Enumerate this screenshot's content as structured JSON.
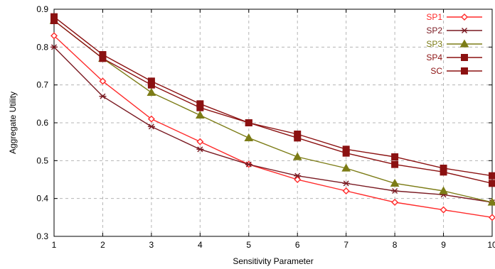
{
  "chart_data": {
    "type": "line",
    "xlabel": "Sensitivity Parameter",
    "ylabel": "Aggregate Utility",
    "xlim": [
      1,
      10
    ],
    "ylim": [
      0.3,
      0.9
    ],
    "x_ticks": [
      "1",
      "2",
      "3",
      "4",
      "5",
      "6",
      "7",
      "8",
      "9",
      "10"
    ],
    "y_ticks": [
      "0.3",
      "0.4",
      "0.5",
      "0.6",
      "0.7",
      "0.8",
      "0.9"
    ],
    "grid": true,
    "legend_position": "top-right",
    "x": [
      1,
      2,
      3,
      4,
      5,
      6,
      7,
      8,
      9,
      10
    ],
    "series": [
      {
        "name": "SP1",
        "color": "#ff2a2a",
        "marker": "open-diamond",
        "values": [
          0.83,
          0.71,
          0.61,
          0.55,
          0.49,
          0.45,
          0.42,
          0.39,
          0.37,
          0.35
        ]
      },
      {
        "name": "SP2",
        "color": "#7a1a22",
        "marker": "asterisk",
        "values": [
          0.8,
          0.67,
          0.59,
          0.53,
          0.49,
          0.46,
          0.44,
          0.42,
          0.41,
          0.39
        ]
      },
      {
        "name": "SP3",
        "color": "#7c7c16",
        "marker": "filled-triangle",
        "values": [
          0.87,
          0.77,
          0.68,
          0.62,
          0.56,
          0.51,
          0.48,
          0.44,
          0.42,
          0.39
        ]
      },
      {
        "name": "SP4",
        "color": "#8b1111",
        "marker": "filled-square",
        "values": [
          0.88,
          0.78,
          0.71,
          0.65,
          0.6,
          0.57,
          0.53,
          0.51,
          0.48,
          0.46
        ]
      },
      {
        "name": "SC",
        "color": "#8b1111",
        "marker": "filled-square",
        "values": [
          0.87,
          0.77,
          0.7,
          0.64,
          0.6,
          0.56,
          0.52,
          0.49,
          0.47,
          0.44
        ]
      }
    ]
  }
}
